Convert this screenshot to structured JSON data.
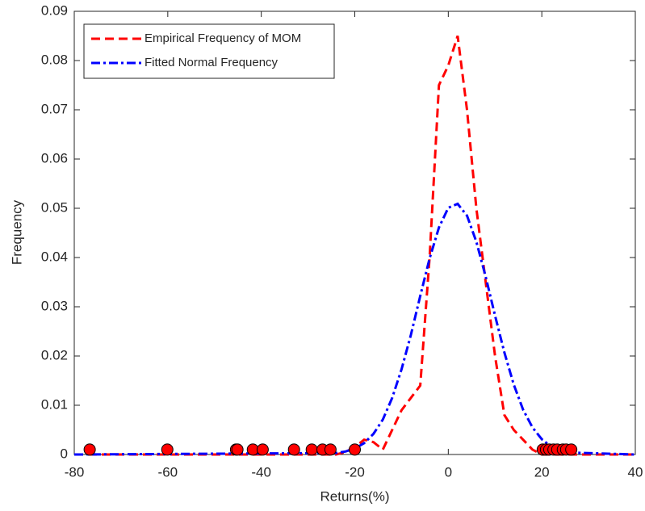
{
  "chart_data": {
    "type": "line",
    "xlabel": "Returns(%)",
    "ylabel": "Frequency",
    "x": [
      -80,
      -24,
      -22,
      -20,
      -18,
      -16,
      -14,
      -12,
      -10,
      -8,
      -6,
      -4,
      -2,
      0,
      2,
      4,
      6,
      8,
      10,
      12,
      14,
      16,
      18,
      20,
      22,
      24,
      26,
      40
    ],
    "series": [
      {
        "name": "Empirical Frequency of MOM",
        "color": "#ff0000",
        "dash": "dashed",
        "values": [
          0,
          0,
          0.0005,
          0.0015,
          0.003,
          0.0025,
          0.001,
          0.005,
          0.009,
          0.0115,
          0.014,
          0.04,
          0.075,
          0.079,
          0.085,
          0.07,
          0.05,
          0.035,
          0.02,
          0.008,
          0.005,
          0.003,
          0.001,
          0,
          0,
          0,
          0,
          0
        ]
      },
      {
        "name": "Fitted Normal Frequency",
        "color": "#0000ff",
        "dash": "dashdot",
        "values": [
          0,
          0.0003,
          0.0006,
          0.0012,
          0.0023,
          0.0042,
          0.0071,
          0.0115,
          0.0173,
          0.0243,
          0.0322,
          0.0398,
          0.0461,
          0.0501,
          0.0509,
          0.0485,
          0.0432,
          0.0361,
          0.0282,
          0.0207,
          0.0142,
          0.0091,
          0.0055,
          0.0031,
          0.0016,
          0.0008,
          0.0004,
          0
        ]
      }
    ],
    "points": {
      "color": "#ff0000",
      "x": [
        -76.7,
        -60.1,
        -45.4,
        -45.1,
        -41.8,
        -39.7,
        -33.0,
        -29.2,
        -26.9,
        -25.2,
        -20.0,
        20.2,
        20.9,
        21.6,
        22.5,
        23.3,
        24.5,
        25.2,
        26.3
      ],
      "values": [
        0.001,
        0.001,
        0.001,
        0.001,
        0.001,
        0.001,
        0.001,
        0.001,
        0.001,
        0.001,
        0.001,
        0.001,
        0.001,
        0.001,
        0.001,
        0.001,
        0.001,
        0.001,
        0.001
      ]
    },
    "xlim": [
      -80,
      40
    ],
    "xticks": [
      -80,
      -60,
      -40,
      -20,
      0,
      20,
      40
    ],
    "ylim": [
      0,
      0.09
    ],
    "yticks": [
      0,
      0.01,
      0.02,
      0.03,
      0.04,
      0.05,
      0.06,
      0.07,
      0.08,
      0.09
    ],
    "legend": "upper left"
  }
}
